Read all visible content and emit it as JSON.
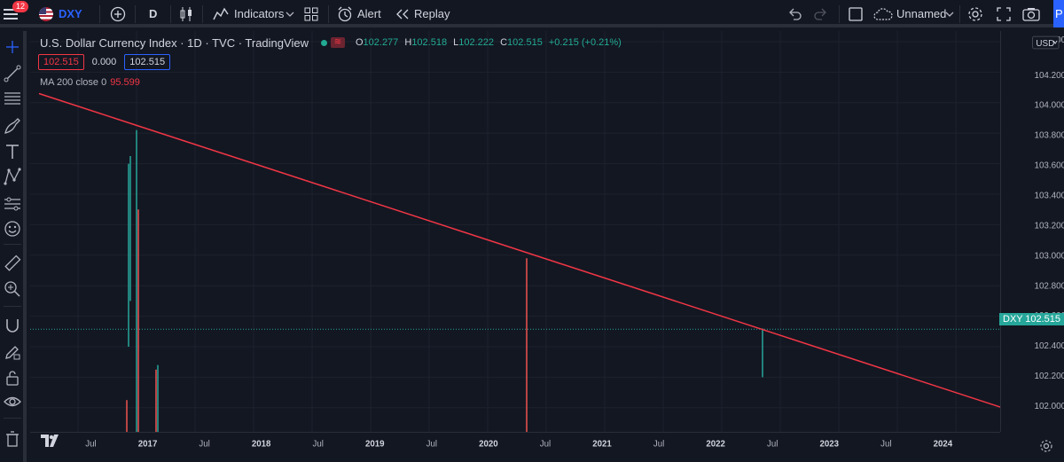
{
  "toolbar": {
    "notifications": "12",
    "symbol": "DXY",
    "interval": "D",
    "indicators_label": "Indicators",
    "alert_label": "Alert",
    "replay_label": "Replay",
    "layout_name": "Unnamed",
    "publish_label": "P"
  },
  "legend": {
    "title": "U.S. Dollar Currency Index · 1D · TVC · TradingView",
    "open_label": "O",
    "open": "102.277",
    "high_label": "H",
    "high": "102.518",
    "low_label": "L",
    "low": "102.222",
    "close_label": "C",
    "close": "102.515",
    "change": "+0.215 (+0.21%)",
    "bid": "102.515",
    "spread": "0.000",
    "ask": "102.515",
    "ma_label": "MA 200 close 0",
    "ma_value": "95.599"
  },
  "price_axis": {
    "currency": "USD",
    "ticks": [
      "104.400",
      "104.200",
      "104.000",
      "103.800",
      "103.600",
      "103.400",
      "103.200",
      "103.000",
      "102.800",
      "102.600",
      "102.400",
      "102.200",
      "102.000",
      "101.800"
    ],
    "last_symbol": "DXY",
    "last_price": "102.515"
  },
  "time_axis": {
    "ticks": [
      "Jul",
      "2017",
      "Jul",
      "2018",
      "Jul",
      "2019",
      "Jul",
      "2020",
      "Jul",
      "2021",
      "Jul",
      "2022",
      "Jul",
      "2023",
      "Jul",
      "2024"
    ]
  },
  "colors": {
    "background": "#131722",
    "trendline": "#f23645",
    "up": "#26a69a",
    "down": "#ef5350",
    "accent": "#2962ff"
  },
  "chart_data": {
    "type": "candlestick",
    "symbol": "DXY",
    "interval": "1D",
    "ylim": [
      101.75,
      104.45
    ],
    "last_price": 102.515,
    "trendline": {
      "from": {
        "x": "2016-03",
        "y": 104.06
      },
      "to": {
        "x": "2024-12",
        "y": 101.87
      }
    },
    "spikes": [
      {
        "x": "2016-12",
        "low": 101.75,
        "high": 102.05,
        "color": "down"
      },
      {
        "x": "2016-12",
        "low": 102.4,
        "high": 103.6,
        "color": "up"
      },
      {
        "x": "2016-12",
        "low": 102.7,
        "high": 103.65,
        "color": "up"
      },
      {
        "x": "2017-01",
        "low": 101.75,
        "high": 103.82,
        "color": "up"
      },
      {
        "x": "2017-01",
        "low": 101.75,
        "high": 103.3,
        "color": "down"
      },
      {
        "x": "2017-03",
        "low": 101.75,
        "high": 102.25,
        "color": "down"
      },
      {
        "x": "2017-03",
        "low": 101.75,
        "high": 102.28,
        "color": "up"
      },
      {
        "x": "2020-05",
        "low": 101.75,
        "high": 102.98,
        "color": "down"
      },
      {
        "x": "2022-05",
        "low": 101.75,
        "high": 101.84,
        "color": "up"
      },
      {
        "x": "2022-05",
        "low": 102.2,
        "high": 102.52,
        "color": "up"
      }
    ]
  }
}
